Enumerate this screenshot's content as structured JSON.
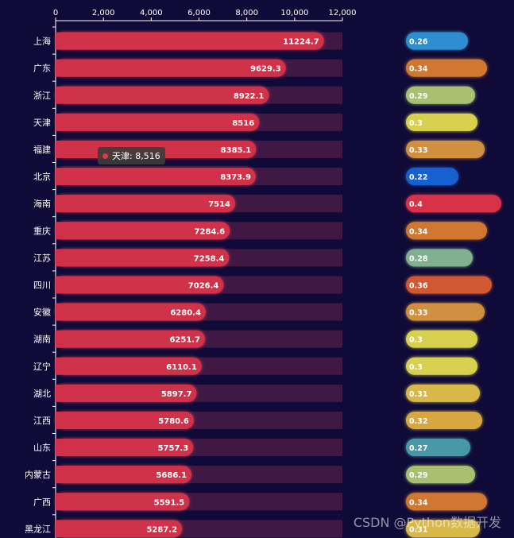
{
  "chart_data": [
    {
      "type": "bar",
      "orientation": "horizontal",
      "categories": [
        "上海",
        "广东",
        "浙江",
        "天津",
        "福建",
        "北京",
        "海南",
        "重庆",
        "江苏",
        "四川",
        "安徽",
        "湖南",
        "辽宁",
        "湖北",
        "江西",
        "山东",
        "内蒙古",
        "广西",
        "黑龙江"
      ],
      "values": [
        11224.7,
        9629.3,
        8922.1,
        8516,
        8385.1,
        8373.9,
        7514,
        7284.6,
        7258.4,
        7026.4,
        6280.4,
        6251.7,
        6110.1,
        5897.7,
        5780.6,
        5757.3,
        5686.1,
        5591.5,
        5287.2
      ],
      "xlim": [
        0,
        12000
      ],
      "xticks": [
        "0",
        "2,000",
        "4,000",
        "6,000",
        "8,000",
        "10,000",
        "12,000"
      ],
      "bar_color": "#d0304a",
      "background_bar_color": "#3f1844"
    },
    {
      "type": "bar",
      "orientation": "horizontal",
      "categories": [
        "上海",
        "广东",
        "浙江",
        "天津",
        "福建",
        "北京",
        "海南",
        "重庆",
        "江苏",
        "四川",
        "安徽",
        "湖南",
        "辽宁",
        "湖北",
        "江西",
        "山东",
        "内蒙古",
        "广西",
        "黑龙江"
      ],
      "values": [
        0.26,
        0.34,
        0.29,
        0.3,
        0.33,
        0.22,
        0.4,
        0.34,
        0.28,
        0.36,
        0.33,
        0.3,
        0.3,
        0.31,
        0.32,
        0.27,
        0.29,
        0.34,
        0.31
      ],
      "labels": [
        "0.26",
        "0.34",
        "0.29",
        "0.3",
        "0.33",
        "0.22",
        "0.4",
        "0.34",
        "0.28",
        "0.36",
        "0.33",
        "0.3",
        "0.3",
        "0.31",
        "0.32",
        "0.27",
        "0.29",
        "0.34",
        "0.31"
      ],
      "colors": [
        "#2e8fd0",
        "#d07830",
        "#a8c070",
        "#d8d050",
        "#d09040",
        "#1860d0",
        "#d83048",
        "#d07830",
        "#80b090",
        "#d05830",
        "#d09040",
        "#d8d050",
        "#d8d050",
        "#d8b848",
        "#d8a840",
        "#4898a8",
        "#a8c070",
        "#d07830",
        "#d8b848"
      ]
    }
  ],
  "tooltip": {
    "label": "天津: 8,516",
    "dot_color": "#e8334a"
  },
  "watermark": "CSDN @Python数据开发"
}
